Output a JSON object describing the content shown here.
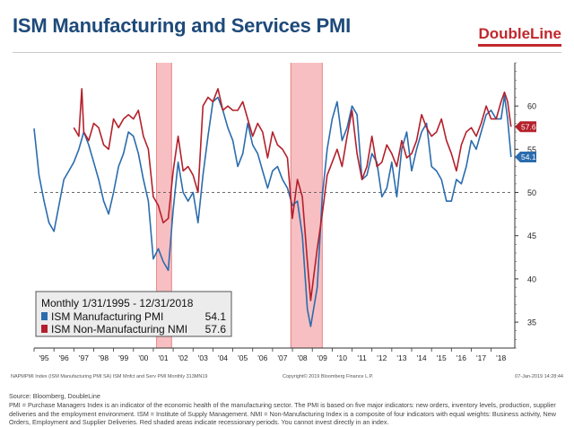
{
  "header": {
    "title": "ISM Manufacturing and Services PMI",
    "logo": "DoubleLine"
  },
  "chart_data": {
    "type": "line",
    "x_range": [
      "1995-01-31",
      "2018-12-31"
    ],
    "ylim": [
      32,
      65
    ],
    "yticks": [
      35,
      40,
      45,
      50,
      55,
      60
    ],
    "reference_line": 50,
    "xtick_labels": [
      "'95",
      "'96",
      "'97",
      "'98",
      "'99",
      "'00",
      "'01",
      "'02",
      "'03",
      "'04",
      "'05",
      "'06",
      "'07",
      "'08",
      "'09",
      "'10",
      "'11",
      "'12",
      "'13",
      "'14",
      "'15",
      "'16",
      "'17",
      "'18"
    ],
    "recessions": [
      {
        "start": "2001-03",
        "end": "2001-11"
      },
      {
        "start": "2007-12",
        "end": "2009-06"
      }
    ],
    "legend": {
      "position": "bottom-left",
      "title": "Monthly 1/31/1995 - 12/31/2018",
      "entries": [
        {
          "label": "ISM Manufacturing PMI",
          "value": "54.1"
        },
        {
          "label": "ISM Non-Manufacturing NMI",
          "value": "57.6"
        }
      ]
    },
    "source_note": "NAPMPMI Index (ISM Manufacturing PMI SA) ISM Mnfct and Serv PMI Monthly 313MN19",
    "copyright": "Copyright© 2019 Bloomberg Finance L.P.",
    "timestamp": "07-Jan-2019 14:28:44",
    "series": [
      {
        "name": "ISM Manufacturing PMI",
        "color": "#2b6cad",
        "last_label": "54.1",
        "points": [
          [
            1995.0,
            57.4
          ],
          [
            1995.25,
            52.0
          ],
          [
            1995.5,
            49.0
          ],
          [
            1995.75,
            46.5
          ],
          [
            1996.0,
            45.5
          ],
          [
            1996.25,
            48.5
          ],
          [
            1996.5,
            51.5
          ],
          [
            1996.75,
            52.5
          ],
          [
            1997.0,
            53.5
          ],
          [
            1997.25,
            55.0
          ],
          [
            1997.5,
            57.0
          ],
          [
            1997.75,
            55.5
          ],
          [
            1998.0,
            53.5
          ],
          [
            1998.25,
            51.5
          ],
          [
            1998.5,
            49.0
          ],
          [
            1998.75,
            47.5
          ],
          [
            1999.0,
            50.0
          ],
          [
            1999.25,
            53.0
          ],
          [
            1999.5,
            54.5
          ],
          [
            1999.75,
            57.0
          ],
          [
            2000.0,
            56.5
          ],
          [
            2000.25,
            54.5
          ],
          [
            2000.5,
            51.5
          ],
          [
            2000.75,
            49.0
          ],
          [
            2001.0,
            42.3
          ],
          [
            2001.25,
            43.5
          ],
          [
            2001.5,
            42.0
          ],
          [
            2001.75,
            41.0
          ],
          [
            2002.0,
            48.0
          ],
          [
            2002.25,
            53.5
          ],
          [
            2002.5,
            50.0
          ],
          [
            2002.75,
            49.0
          ],
          [
            2003.0,
            50.0
          ],
          [
            2003.25,
            46.5
          ],
          [
            2003.5,
            52.0
          ],
          [
            2003.75,
            56.5
          ],
          [
            2004.0,
            60.5
          ],
          [
            2004.25,
            61.0
          ],
          [
            2004.5,
            59.5
          ],
          [
            2004.75,
            57.5
          ],
          [
            2005.0,
            56.0
          ],
          [
            2005.25,
            53.0
          ],
          [
            2005.5,
            54.5
          ],
          [
            2005.75,
            58.0
          ],
          [
            2006.0,
            55.5
          ],
          [
            2006.25,
            54.5
          ],
          [
            2006.5,
            52.5
          ],
          [
            2006.75,
            50.5
          ],
          [
            2007.0,
            52.5
          ],
          [
            2007.25,
            53.0
          ],
          [
            2007.5,
            51.5
          ],
          [
            2007.75,
            50.5
          ],
          [
            2008.0,
            48.5
          ],
          [
            2008.25,
            49.0
          ],
          [
            2008.5,
            45.0
          ],
          [
            2008.75,
            36.5
          ],
          [
            2008.92,
            34.5
          ],
          [
            2009.25,
            39.0
          ],
          [
            2009.5,
            49.5
          ],
          [
            2009.75,
            55.0
          ],
          [
            2010.0,
            58.5
          ],
          [
            2010.25,
            60.5
          ],
          [
            2010.5,
            56.0
          ],
          [
            2010.75,
            57.5
          ],
          [
            2011.0,
            60.0
          ],
          [
            2011.25,
            59.0
          ],
          [
            2011.5,
            51.5
          ],
          [
            2011.75,
            52.0
          ],
          [
            2012.0,
            54.5
          ],
          [
            2012.25,
            53.5
          ],
          [
            2012.5,
            49.5
          ],
          [
            2012.75,
            50.5
          ],
          [
            2013.0,
            53.5
          ],
          [
            2013.25,
            49.5
          ],
          [
            2013.5,
            55.0
          ],
          [
            2013.75,
            57.0
          ],
          [
            2014.0,
            52.5
          ],
          [
            2014.25,
            55.0
          ],
          [
            2014.5,
            57.0
          ],
          [
            2014.75,
            58.0
          ],
          [
            2015.0,
            53.0
          ],
          [
            2015.25,
            52.5
          ],
          [
            2015.5,
            51.5
          ],
          [
            2015.75,
            49.0
          ],
          [
            2016.0,
            49.0
          ],
          [
            2016.25,
            51.5
          ],
          [
            2016.5,
            51.0
          ],
          [
            2016.75,
            53.0
          ],
          [
            2017.0,
            56.0
          ],
          [
            2017.25,
            55.0
          ],
          [
            2017.5,
            57.0
          ],
          [
            2017.75,
            59.0
          ],
          [
            2018.0,
            59.5
          ],
          [
            2018.25,
            58.5
          ],
          [
            2018.5,
            58.5
          ],
          [
            2018.67,
            61.2
          ],
          [
            2018.83,
            58.5
          ],
          [
            2019.0,
            54.1
          ]
        ]
      },
      {
        "name": "ISM Non-Manufacturing NMI",
        "color": "#b3202b",
        "last_label": "57.6",
        "points": [
          [
            1997.0,
            57.5
          ],
          [
            1997.25,
            56.5
          ],
          [
            1997.4,
            62.0
          ],
          [
            1997.5,
            57.0
          ],
          [
            1997.75,
            56.0
          ],
          [
            1998.0,
            58.0
          ],
          [
            1998.25,
            57.5
          ],
          [
            1998.5,
            55.5
          ],
          [
            1998.75,
            55.0
          ],
          [
            1999.0,
            58.5
          ],
          [
            1999.25,
            57.5
          ],
          [
            1999.5,
            58.5
          ],
          [
            1999.75,
            59.0
          ],
          [
            2000.0,
            58.5
          ],
          [
            2000.25,
            59.5
          ],
          [
            2000.5,
            56.5
          ],
          [
            2000.75,
            55.0
          ],
          [
            2001.0,
            49.5
          ],
          [
            2001.25,
            48.5
          ],
          [
            2001.5,
            46.5
          ],
          [
            2001.75,
            47.0
          ],
          [
            2002.0,
            52.5
          ],
          [
            2002.25,
            56.5
          ],
          [
            2002.5,
            52.5
          ],
          [
            2002.75,
            53.0
          ],
          [
            2003.0,
            52.0
          ],
          [
            2003.25,
            50.0
          ],
          [
            2003.5,
            60.0
          ],
          [
            2003.75,
            61.0
          ],
          [
            2004.0,
            60.5
          ],
          [
            2004.25,
            62.0
          ],
          [
            2004.5,
            59.5
          ],
          [
            2004.75,
            60.0
          ],
          [
            2005.0,
            59.5
          ],
          [
            2005.25,
            59.5
          ],
          [
            2005.5,
            60.5
          ],
          [
            2005.75,
            58.5
          ],
          [
            2006.0,
            56.5
          ],
          [
            2006.25,
            58.0
          ],
          [
            2006.5,
            57.0
          ],
          [
            2006.75,
            54.0
          ],
          [
            2007.0,
            57.0
          ],
          [
            2007.25,
            55.5
          ],
          [
            2007.5,
            55.0
          ],
          [
            2007.75,
            54.0
          ],
          [
            2008.0,
            47.0
          ],
          [
            2008.25,
            51.5
          ],
          [
            2008.5,
            49.5
          ],
          [
            2008.75,
            42.0
          ],
          [
            2008.92,
            37.5
          ],
          [
            2009.25,
            43.5
          ],
          [
            2009.5,
            47.5
          ],
          [
            2009.75,
            52.0
          ],
          [
            2010.0,
            53.5
          ],
          [
            2010.25,
            55.0
          ],
          [
            2010.5,
            53.0
          ],
          [
            2010.75,
            56.5
          ],
          [
            2011.0,
            59.5
          ],
          [
            2011.25,
            54.5
          ],
          [
            2011.5,
            51.5
          ],
          [
            2011.75,
            53.0
          ],
          [
            2012.0,
            56.5
          ],
          [
            2012.25,
            53.0
          ],
          [
            2012.5,
            53.5
          ],
          [
            2012.75,
            55.5
          ],
          [
            2013.0,
            54.5
          ],
          [
            2013.25,
            53.0
          ],
          [
            2013.5,
            56.0
          ],
          [
            2013.75,
            54.0
          ],
          [
            2014.0,
            54.5
          ],
          [
            2014.25,
            56.0
          ],
          [
            2014.5,
            59.0
          ],
          [
            2014.75,
            57.5
          ],
          [
            2015.0,
            56.5
          ],
          [
            2015.25,
            57.0
          ],
          [
            2015.5,
            58.5
          ],
          [
            2015.75,
            56.0
          ],
          [
            2016.0,
            54.5
          ],
          [
            2016.25,
            52.5
          ],
          [
            2016.5,
            55.5
          ],
          [
            2016.75,
            57.0
          ],
          [
            2017.0,
            57.5
          ],
          [
            2017.25,
            56.5
          ],
          [
            2017.5,
            58.0
          ],
          [
            2017.75,
            60.0
          ],
          [
            2018.0,
            58.5
          ],
          [
            2018.25,
            58.5
          ],
          [
            2018.5,
            60.5
          ],
          [
            2018.67,
            61.6
          ],
          [
            2018.83,
            60.5
          ],
          [
            2019.0,
            57.6
          ]
        ]
      }
    ]
  },
  "footnotes": {
    "source": "Source: Bloomberg, DoubleLine",
    "definitions": "PMI = Purchase Managers Index is an indicator of the economic health of the manufacturing sector. The PMI is based on five major indicators: new orders, inventory levels, production, supplier deliveries and the employment environment. ISM = Institute of Supply Management. NMI = Non-Manufacturing Index is a composite of four indicators with equal weights: Business activity, New Orders, Employment and Supplier Deliveries. Red shaded areas indicate recessionary periods. You cannot invest directly in an index."
  }
}
